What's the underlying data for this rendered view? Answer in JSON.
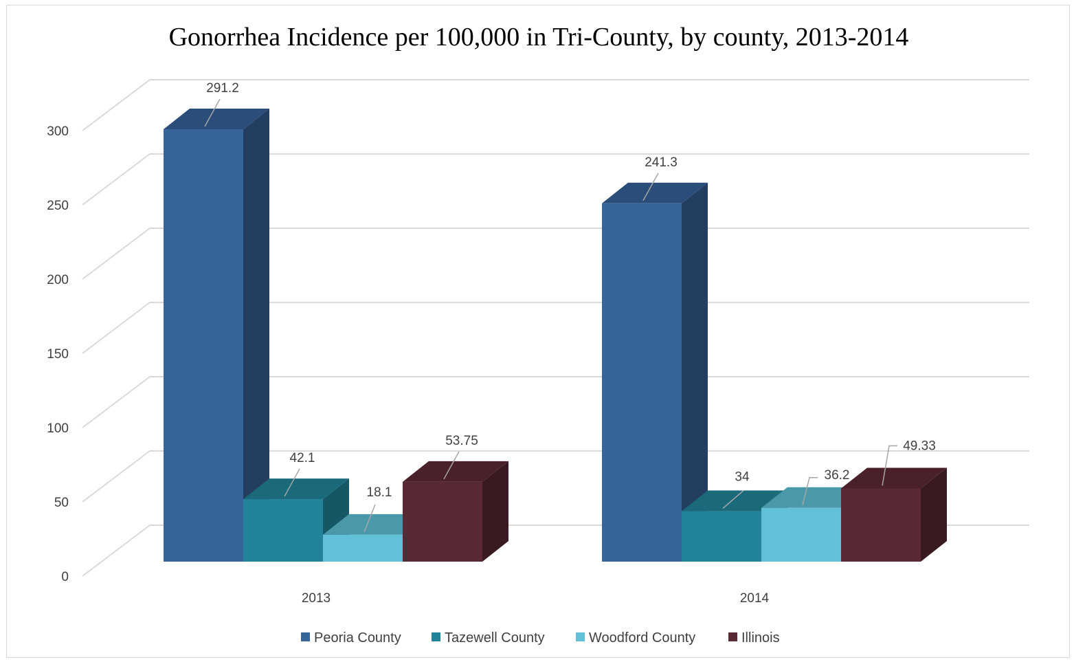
{
  "chart_data": {
    "type": "bar",
    "title": "Gonorrhea Incidence per 100,000 in Tri-County, by county, 2013-2014",
    "xlabel": "",
    "ylabel": "",
    "categories": [
      "2013",
      "2014"
    ],
    "series": [
      {
        "name": "Peoria County",
        "values": [
          291.2,
          241.3
        ],
        "labels": [
          "291.2",
          "241.3"
        ],
        "color": "#376499",
        "top_color": "#2a4d7a",
        "side_color": "#243e62"
      },
      {
        "name": "Tazewell County",
        "values": [
          42.1,
          34
        ],
        "labels": [
          "42.1",
          "34"
        ],
        "color": "#22839a",
        "top_color": "#1b6a7c",
        "side_color": "#165766"
      },
      {
        "name": "Woodford County",
        "values": [
          18.1,
          36.2
        ],
        "labels": [
          "18.1",
          "36.2"
        ],
        "color": "#62c0d9",
        "top_color": "#4a99aa",
        "side_color": "#3f8698"
      },
      {
        "name": "Illinois",
        "values": [
          53.75,
          49.33
        ],
        "labels": [
          "53.75",
          "49.33"
        ],
        "color": "#5a2a34",
        "top_color": "#4a2029",
        "side_color": "#3a1a21"
      }
    ],
    "y_ticks": [
      "0",
      "50",
      "100",
      "150",
      "200",
      "250",
      "300"
    ],
    "ylim": [
      0,
      300
    ],
    "grid": true,
    "legend_position": "bottom",
    "three_d": true
  }
}
